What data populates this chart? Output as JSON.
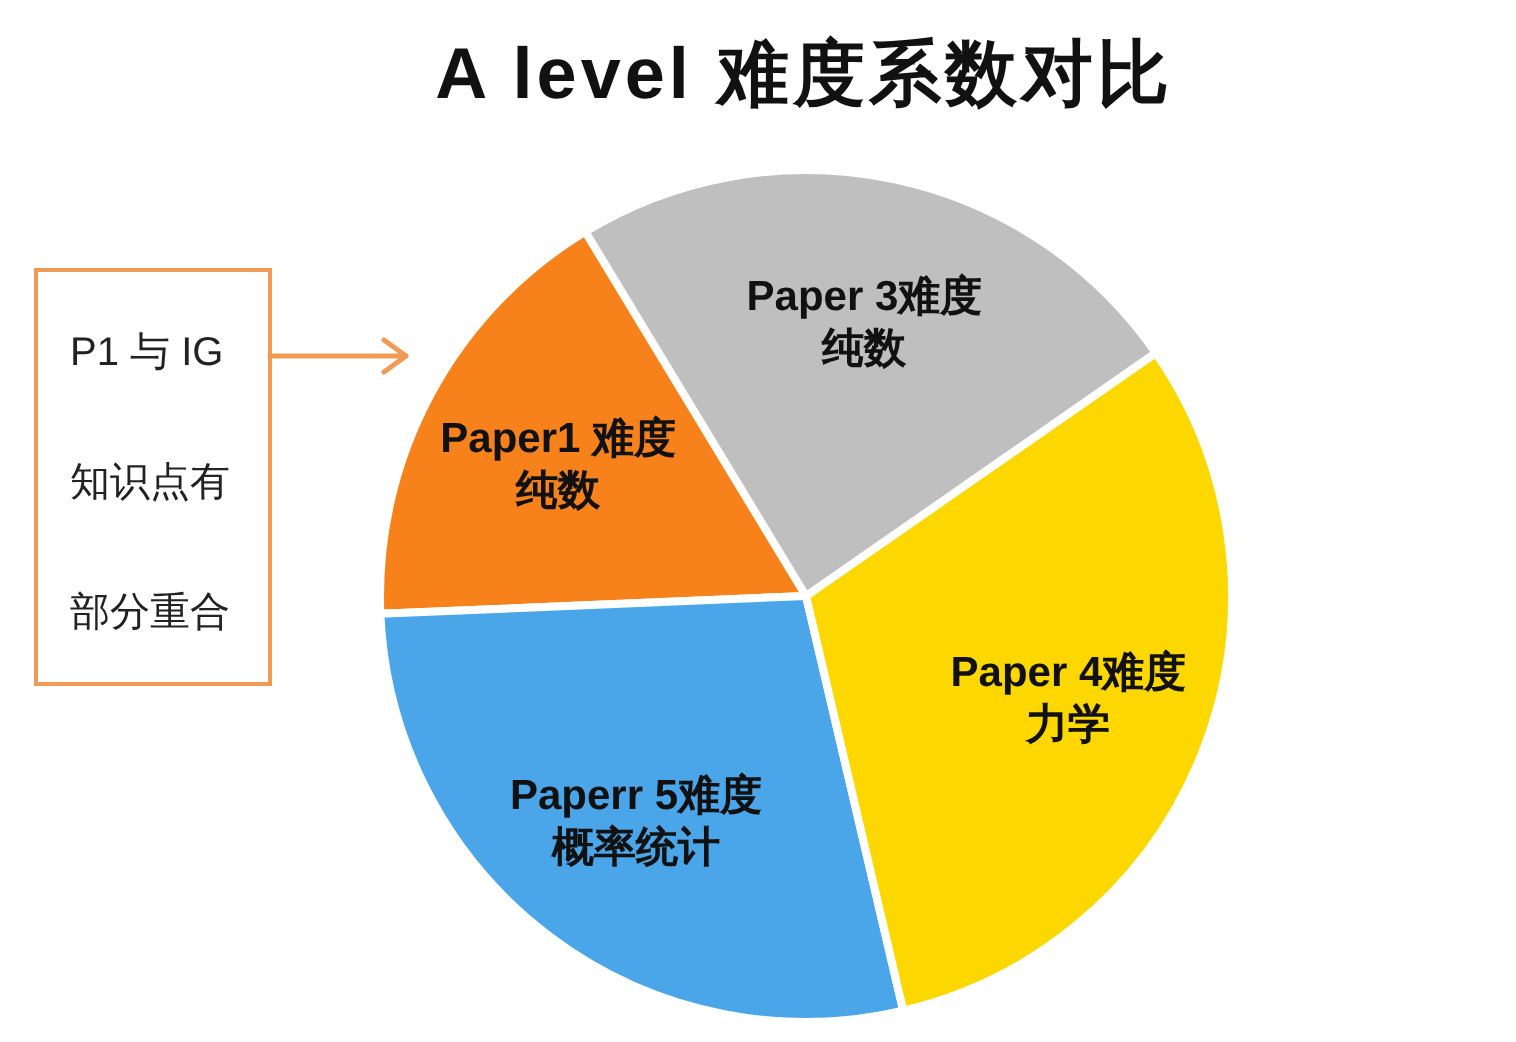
{
  "chart_data": {
    "type": "pie",
    "title": "A level 难度系数对比",
    "categories": [
      "Paper1 难度纯数",
      "Paperr 5难度概率统计",
      "Paper 4难度力学",
      "Paper 3难度纯数"
    ],
    "values": [
      17,
      28,
      31,
      24
    ],
    "colors": [
      "#f7821b",
      "#4aa6e8",
      "#fdd800",
      "#bfbfbf"
    ],
    "annotations": [
      "P1 与 IG知识点有部分重合"
    ]
  }
}
